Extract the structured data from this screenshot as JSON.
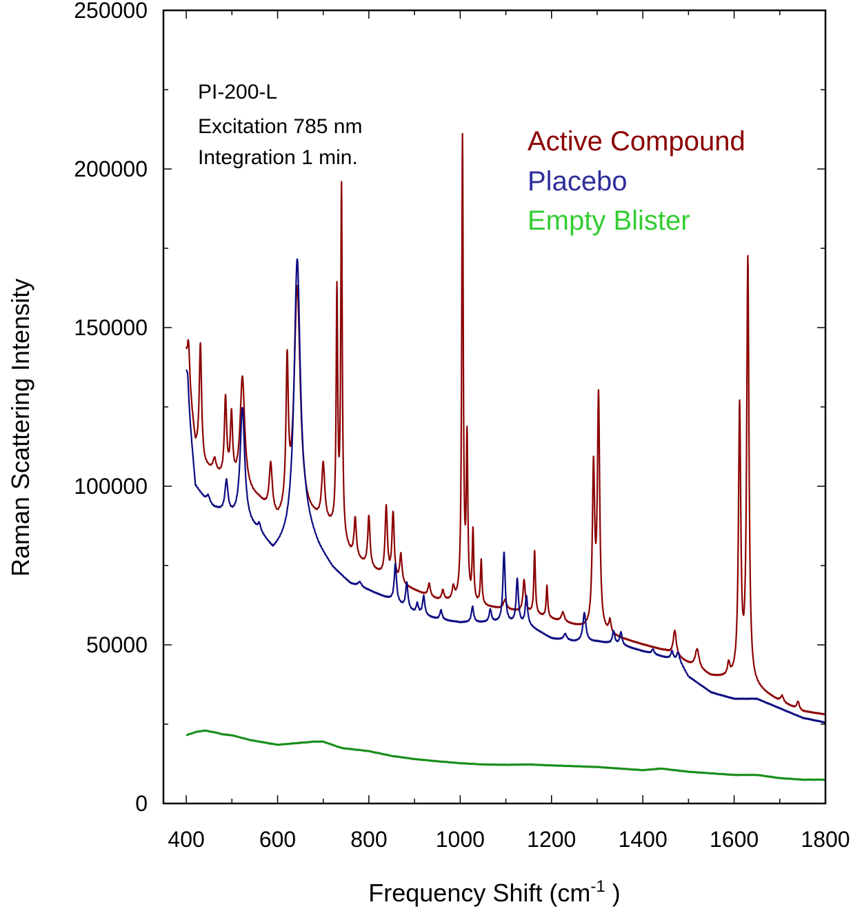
{
  "chart_data": {
    "type": "line",
    "xlabel": "Frequency Shift (cm",
    "xlabel_sup": "-1",
    "xlabel_tail": " )",
    "ylabel": "Raman Scattering Intensity",
    "xlim": [
      350,
      1800
    ],
    "ylim": [
      0,
      250000
    ],
    "x_ticks": [
      400,
      600,
      800,
      1000,
      1200,
      1400,
      1600,
      1800
    ],
    "x_tick_labels": [
      "400",
      "600",
      "800",
      "1000",
      "1200",
      "1400",
      "1600",
      "1800"
    ],
    "y_ticks": [
      0,
      50000,
      100000,
      150000,
      200000,
      250000
    ],
    "y_tick_labels": [
      "0",
      "50000",
      "100000",
      "150000",
      "200000",
      "250000"
    ],
    "annotations": [
      "PI-200-L",
      "Excitation 785 nm",
      "Integration 1 min."
    ],
    "legend_position": "top-right",
    "grid": false,
    "series": [
      {
        "name": "Active Compound",
        "color": "#8b0000",
        "baseline": [
          [
            400,
            140000
          ],
          [
            420,
            112000
          ],
          [
            440,
            106000
          ],
          [
            480,
            102000
          ],
          [
            520,
            99000
          ],
          [
            560,
            95000
          ],
          [
            600,
            88000
          ],
          [
            640,
            90000
          ],
          [
            680,
            89000
          ],
          [
            720,
            86000
          ],
          [
            760,
            78000
          ],
          [
            800,
            74000
          ],
          [
            850,
            70000
          ],
          [
            900,
            67000
          ],
          [
            950,
            64000
          ],
          [
            1000,
            63000
          ],
          [
            1050,
            62000
          ],
          [
            1100,
            61000
          ],
          [
            1150,
            60000
          ],
          [
            1200,
            58000
          ],
          [
            1250,
            56000
          ],
          [
            1300,
            54000
          ],
          [
            1350,
            52000
          ],
          [
            1400,
            50000
          ],
          [
            1450,
            48000
          ],
          [
            1500,
            44000
          ],
          [
            1550,
            40000
          ],
          [
            1600,
            39000
          ],
          [
            1650,
            36000
          ],
          [
            1700,
            32000
          ],
          [
            1750,
            29000
          ],
          [
            1800,
            28000
          ]
        ],
        "peaks": [
          [
            405,
            12000,
            3
          ],
          [
            431,
            36000,
            3
          ],
          [
            462,
            4000,
            4
          ],
          [
            486,
            25000,
            3
          ],
          [
            499,
            20000,
            3
          ],
          [
            523,
            35000,
            6
          ],
          [
            585,
            15000,
            4
          ],
          [
            621,
            45000,
            3
          ],
          [
            643,
            72000,
            8
          ],
          [
            700,
            18000,
            4
          ],
          [
            730,
            75000,
            2
          ],
          [
            740,
            110000,
            2
          ],
          [
            770,
            12000,
            3
          ],
          [
            800,
            16000,
            3
          ],
          [
            838,
            22000,
            3
          ],
          [
            853,
            21000,
            3
          ],
          [
            870,
            9000,
            3
          ],
          [
            932,
            4000,
            3
          ],
          [
            962,
            3000,
            3
          ],
          [
            985,
            4000,
            3
          ],
          [
            1005,
            146000,
            2
          ],
          [
            1015,
            50000,
            2
          ],
          [
            1028,
            22000,
            2
          ],
          [
            1046,
            14000,
            2
          ],
          [
            1098,
            3000,
            4
          ],
          [
            1140,
            10000,
            3
          ],
          [
            1163,
            20000,
            2
          ],
          [
            1190,
            10000,
            2
          ],
          [
            1225,
            3000,
            4
          ],
          [
            1292,
            50000,
            3
          ],
          [
            1303,
            73000,
            3
          ],
          [
            1328,
            4000,
            3
          ],
          [
            1470,
            8000,
            4
          ],
          [
            1519,
            6000,
            5
          ],
          [
            1588,
            4000,
            3
          ],
          [
            1612,
            85000,
            3
          ],
          [
            1630,
            133000,
            3
          ],
          [
            1705,
            2000,
            4
          ],
          [
            1740,
            2500,
            3
          ]
        ]
      },
      {
        "name": "Placebo",
        "color": "#0a0a80",
        "baseline": [
          [
            400,
            133000
          ],
          [
            420,
            100000
          ],
          [
            440,
            96000
          ],
          [
            460,
            93000
          ],
          [
            500,
            90000
          ],
          [
            540,
            87000
          ],
          [
            560,
            85000
          ],
          [
            590,
            79000
          ],
          [
            620,
            82000
          ],
          [
            660,
            88000
          ],
          [
            690,
            80000
          ],
          [
            720,
            74000
          ],
          [
            760,
            69000
          ],
          [
            800,
            67000
          ],
          [
            850,
            64000
          ],
          [
            900,
            60000
          ],
          [
            950,
            58000
          ],
          [
            1000,
            57000
          ],
          [
            1050,
            57000
          ],
          [
            1100,
            57000
          ],
          [
            1150,
            56000
          ],
          [
            1200,
            52000
          ],
          [
            1250,
            51000
          ],
          [
            1300,
            51000
          ],
          [
            1350,
            50000
          ],
          [
            1400,
            48000
          ],
          [
            1450,
            46000
          ],
          [
            1480,
            45000
          ],
          [
            1500,
            40000
          ],
          [
            1550,
            35000
          ],
          [
            1600,
            33000
          ],
          [
            1650,
            33000
          ],
          [
            1700,
            30000
          ],
          [
            1750,
            27000
          ],
          [
            1800,
            25500
          ]
        ],
        "peaks": [
          [
            403,
            7000,
            3
          ],
          [
            448,
            2000,
            4
          ],
          [
            488,
            10000,
            4
          ],
          [
            523,
            36000,
            6
          ],
          [
            560,
            2000,
            3
          ],
          [
            643,
            86000,
            8
          ],
          [
            780,
            1500,
            5
          ],
          [
            858,
            12000,
            3
          ],
          [
            883,
            8000,
            3
          ],
          [
            906,
            3000,
            3
          ],
          [
            920,
            6000,
            3
          ],
          [
            958,
            3000,
            3
          ],
          [
            1027,
            5000,
            3
          ],
          [
            1066,
            4000,
            3
          ],
          [
            1096,
            22000,
            3
          ],
          [
            1125,
            14000,
            3
          ],
          [
            1145,
            9000,
            3
          ],
          [
            1230,
            2000,
            4
          ],
          [
            1272,
            9000,
            4
          ],
          [
            1336,
            4000,
            3
          ],
          [
            1352,
            4000,
            3
          ],
          [
            1422,
            1500,
            3
          ],
          [
            1464,
            2500,
            3
          ],
          [
            1477,
            2500,
            3
          ]
        ]
      },
      {
        "name": "Empty Blister",
        "color": "#148c14",
        "baseline": [
          [
            400,
            21500
          ],
          [
            420,
            22500
          ],
          [
            440,
            23000
          ],
          [
            460,
            22500
          ],
          [
            480,
            21800
          ],
          [
            500,
            21500
          ],
          [
            540,
            20000
          ],
          [
            600,
            18500
          ],
          [
            640,
            19000
          ],
          [
            680,
            19500
          ],
          [
            700,
            19500
          ],
          [
            740,
            17500
          ],
          [
            800,
            16500
          ],
          [
            850,
            15000
          ],
          [
            900,
            14000
          ],
          [
            950,
            13300
          ],
          [
            1000,
            12700
          ],
          [
            1050,
            12300
          ],
          [
            1100,
            12200
          ],
          [
            1150,
            12300
          ],
          [
            1200,
            12000
          ],
          [
            1300,
            11500
          ],
          [
            1400,
            10500
          ],
          [
            1440,
            11000
          ],
          [
            1500,
            10000
          ],
          [
            1600,
            9000
          ],
          [
            1650,
            9000
          ],
          [
            1700,
            8000
          ],
          [
            1750,
            7500
          ],
          [
            1800,
            7500
          ]
        ],
        "peaks": []
      }
    ]
  }
}
